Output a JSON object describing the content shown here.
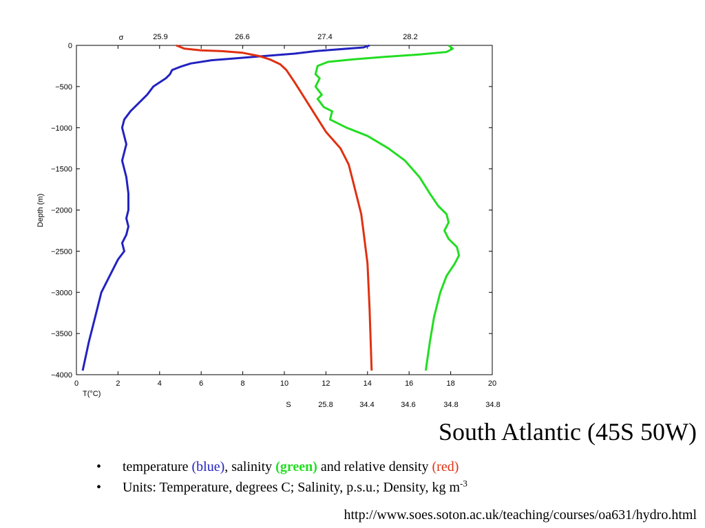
{
  "slide": {
    "title": "South Atlantic (45S 50W)",
    "source_url": "http://www.soes.soton.ac.uk/teaching/courses/oa631/hydro.html",
    "bullets": [
      {
        "before": "temperature ",
        "blue": "(blue)",
        "mid1": ", salinity ",
        "green": "(green)",
        "mid2": " and relative density ",
        "red": "(red)"
      },
      {
        "text": "Units: Temperature, degrees C; Salinity, p.s.u.; Density, kg m",
        "sup": "-3"
      }
    ],
    "colors": {
      "blue": "#2222c0",
      "green": "#22dd22",
      "red": "#e03010"
    }
  },
  "chart_data": {
    "type": "line",
    "title": "",
    "ylabel": "Depth (m)",
    "xlabel": "T(°C)",
    "xlim": [
      0,
      20
    ],
    "ylim": [
      -4000,
      0
    ],
    "x_ticks": [
      "0",
      "2",
      "4",
      "6",
      "8",
      "10",
      "12",
      "14",
      "16",
      "18",
      "20"
    ],
    "y_ticks": [
      "0",
      "−500",
      "−1000",
      "−1500",
      "−2000",
      "−2500",
      "−3000",
      "−3500",
      "−4000"
    ],
    "top_axis": {
      "label": "σ",
      "ticks": [
        "25.9",
        "26.6",
        "27.4",
        "28.2"
      ]
    },
    "salinity_axis": {
      "label": "S",
      "ticks": [
        "25.8",
        "34.4",
        "34.6",
        "34.8",
        "34.8"
      ]
    },
    "grid": false,
    "series": [
      {
        "color": "#2222c0",
        "x": [
          14.1,
          13.8,
          12.5,
          11.5,
          10.5,
          9.5,
          8.5,
          7.5,
          6.5,
          5.5,
          5.0,
          4.6,
          4.5,
          4.3,
          4.0,
          3.7,
          3.4,
          3.0,
          2.6,
          2.3,
          2.2,
          2.4,
          2.2,
          2.4,
          2.5,
          2.5,
          2.4,
          2.5,
          2.4,
          2.2,
          2.3,
          2.0,
          1.6,
          1.2,
          0.9,
          0.6,
          0.3
        ],
        "y": [
          0,
          -25,
          -50,
          -70,
          -100,
          -120,
          -140,
          -160,
          -180,
          -220,
          -260,
          -300,
          -350,
          -400,
          -450,
          -500,
          -600,
          -700,
          -800,
          -900,
          -1000,
          -1200,
          -1400,
          -1600,
          -1800,
          -2000,
          -2100,
          -2200,
          -2300,
          -2400,
          -2500,
          -2600,
          -2800,
          -3000,
          -3300,
          -3600,
          -3950
        ]
      },
      {
        "color": "#22dd22",
        "x": [
          17.9,
          18.1,
          17.8,
          16.5,
          14.8,
          13.3,
          12.1,
          11.6,
          11.5,
          11.7,
          11.5,
          11.8,
          11.6,
          11.9,
          12.3,
          12.2,
          13.0,
          14.0,
          15.0,
          15.8,
          16.5,
          17.0,
          17.4,
          17.8,
          17.9,
          17.7,
          17.9,
          18.3,
          18.4,
          18.2,
          17.8,
          17.5,
          17.2,
          17.0,
          16.8
        ],
        "y": [
          0,
          -40,
          -80,
          -110,
          -140,
          -170,
          -200,
          -250,
          -350,
          -400,
          -500,
          -600,
          -650,
          -750,
          -800,
          -900,
          -1000,
          -1100,
          -1250,
          -1400,
          -1600,
          -1800,
          -1950,
          -2050,
          -2150,
          -2250,
          -2350,
          -2450,
          -2550,
          -2650,
          -2800,
          -3000,
          -3300,
          -3600,
          -3950
        ]
      },
      {
        "color": "#e03010",
        "x": [
          4.8,
          5.2,
          6.0,
          7.0,
          8.0,
          8.8,
          9.3,
          9.8,
          10.1,
          10.5,
          11.0,
          11.5,
          12.0,
          12.7,
          13.1,
          13.3,
          13.5,
          13.7,
          13.8,
          13.9,
          14.0,
          14.1,
          14.2
        ],
        "y": [
          0,
          -40,
          -60,
          -70,
          -90,
          -130,
          -170,
          -230,
          -300,
          -450,
          -650,
          -850,
          -1050,
          -1250,
          -1450,
          -1650,
          -1850,
          -2050,
          -2250,
          -2450,
          -2650,
          -3200,
          -3950
        ]
      }
    ]
  }
}
